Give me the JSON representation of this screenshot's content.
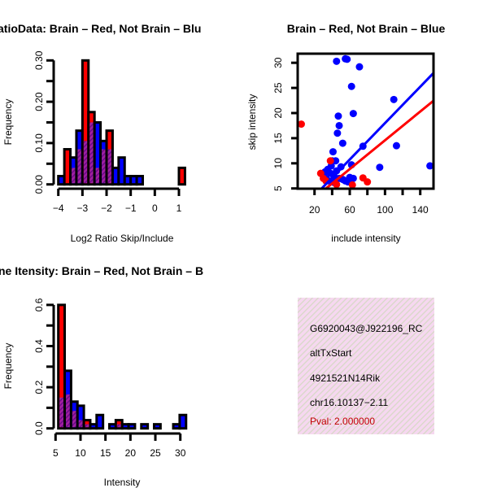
{
  "colors": {
    "red": "#ff0000",
    "blue": "#0000ff",
    "overlap": "#a020a0",
    "overlap_hatch": "#6a0a8a",
    "info_bg": "#f6d8f0",
    "pval": "#c00000"
  },
  "chart_data": [
    {
      "type": "bar",
      "title": "atioData: Brain – Red, Not Brain – Blu",
      "xlabel": "Log2 Ratio Skip/Include",
      "ylabel": "Frequency",
      "xlim": [
        -4,
        1.35
      ],
      "ylim": [
        0,
        0.3
      ],
      "xticks": [
        -4,
        -3,
        -2,
        -1,
        0,
        1
      ],
      "xtick_labels": [
        "−4",
        "−3",
        "−2",
        "−1",
        "0",
        "1"
      ],
      "yticks": [
        0,
        0.05,
        0.1,
        0.15,
        0.2,
        0.25,
        0.3
      ],
      "ytick_labels": [
        "0.00",
        "",
        "0.10",
        "",
        "0.20",
        "",
        "0.30"
      ],
      "bin_start": -4,
      "bin_width": 0.25,
      "series": [
        {
          "name": "Not Brain (blue)",
          "values": [
            0.02,
            0,
            0.065,
            0.13,
            0.105,
            0.15,
            0.15,
            0.105,
            0.085,
            0.04,
            0.065,
            0.02,
            0.02,
            0.02,
            0,
            0,
            0,
            0,
            0,
            0,
            0
          ]
        },
        {
          "name": "Brain (red)",
          "values": [
            0,
            0.085,
            0.04,
            0.085,
            0.3,
            0.175,
            0.04,
            0.085,
            0.13,
            0,
            0,
            0,
            0,
            0,
            0,
            0,
            0,
            0,
            0,
            0,
            0.04
          ]
        }
      ]
    },
    {
      "type": "scatter",
      "title": "Brain – Red, Not Brain – Blue",
      "xlabel": "include intensity",
      "ylabel": "skip intensity",
      "xlim": [
        1,
        155
      ],
      "ylim": [
        5,
        31.7
      ],
      "xticks": [
        20,
        40,
        60,
        80,
        100,
        120,
        140
      ],
      "xtick_labels": [
        "20",
        "",
        "60",
        "",
        "100",
        "",
        "140"
      ],
      "yticks": [
        5,
        10,
        15,
        20,
        25,
        30
      ],
      "ytick_labels": [
        "5",
        "10",
        "15",
        "20",
        "25",
        "30"
      ],
      "series": [
        {
          "name": "Not Brain (blue)",
          "points": [
            [
              45,
              30.3
            ],
            [
              55,
              30.8
            ],
            [
              57,
              30.7
            ],
            [
              71,
              29.2
            ],
            [
              62,
              25.3
            ],
            [
              64,
              19.9
            ],
            [
              47,
              19.4
            ],
            [
              48,
              17.5
            ],
            [
              46,
              16
            ],
            [
              52,
              14
            ],
            [
              75,
              13.4
            ],
            [
              41,
              12.3
            ],
            [
              110,
              22.7
            ],
            [
              113,
              13.5
            ],
            [
              94,
              9.2
            ],
            [
              151,
              9.5
            ],
            [
              40,
              10.5
            ],
            [
              44,
              10.5
            ],
            [
              50,
              9.3
            ],
            [
              62,
              9.7
            ],
            [
              35,
              8.8
            ],
            [
              38,
              8
            ],
            [
              30,
              7.5
            ],
            [
              33,
              7
            ],
            [
              42,
              7.5
            ],
            [
              48,
              7
            ],
            [
              55,
              6.5
            ],
            [
              60,
              7.2
            ],
            [
              64,
              7
            ],
            [
              36,
              6.5
            ],
            [
              45,
              8.5
            ],
            [
              39,
              9.5
            ],
            [
              58,
              6.3
            ],
            [
              32,
              8.3
            ],
            [
              42,
              6.2
            ],
            [
              52,
              6.8
            ]
          ],
          "fit": {
            "intercept": -0.1,
            "slope": 0.181
          }
        },
        {
          "name": "Brain (red)",
          "points": [
            [
              5,
              17.8
            ],
            [
              27,
              8
            ],
            [
              33,
              6.5
            ],
            [
              75,
              7.1
            ],
            [
              80,
              6.3
            ],
            [
              63,
              5.7
            ],
            [
              45,
              5.8
            ],
            [
              38,
              10.5
            ],
            [
              30,
              7
            ]
          ],
          "fit": {
            "intercept": 0.28,
            "slope": 0.143
          }
        }
      ]
    },
    {
      "type": "bar",
      "title": "ne Itensity: Brain – Red, Not Brain – B",
      "xlabel": "Intensity",
      "ylabel": "Frequency",
      "xlim": [
        5,
        31.5
      ],
      "ylim": [
        0,
        0.6
      ],
      "xticks": [
        5,
        10,
        15,
        20,
        25,
        30
      ],
      "xtick_labels": [
        "5",
        "10",
        "15",
        "20",
        "25",
        "30"
      ],
      "yticks": [
        0,
        0.1,
        0.2,
        0.3,
        0.4,
        0.5,
        0.6
      ],
      "ytick_labels": [
        "0.0",
        "",
        "0.2",
        "",
        "0.4",
        "",
        "0.6"
      ],
      "bin_start": 5.55,
      "bin_width": 1.28,
      "series": [
        {
          "name": "Not Brain (blue)",
          "values": [
            0.15,
            0.28,
            0.13,
            0.11,
            0.02,
            0.02,
            0.065,
            0,
            0.02,
            0.02,
            0.02,
            0.02,
            0,
            0.02,
            0,
            0.02,
            0,
            0,
            0.02,
            0.065
          ]
        },
        {
          "name": "Brain (red)",
          "values": [
            0.6,
            0.165,
            0.085,
            0.04,
            0.04,
            0,
            0,
            0,
            0,
            0.04,
            0,
            0,
            0,
            0,
            0,
            0,
            0,
            0,
            0,
            0
          ]
        }
      ]
    }
  ],
  "info": {
    "id": "G6920043@J922196_RC",
    "event": "altTxStart",
    "gene": "4921521N14Rik",
    "location": "chr16.10137−2.11",
    "pval": "Pval: 2.000000"
  }
}
